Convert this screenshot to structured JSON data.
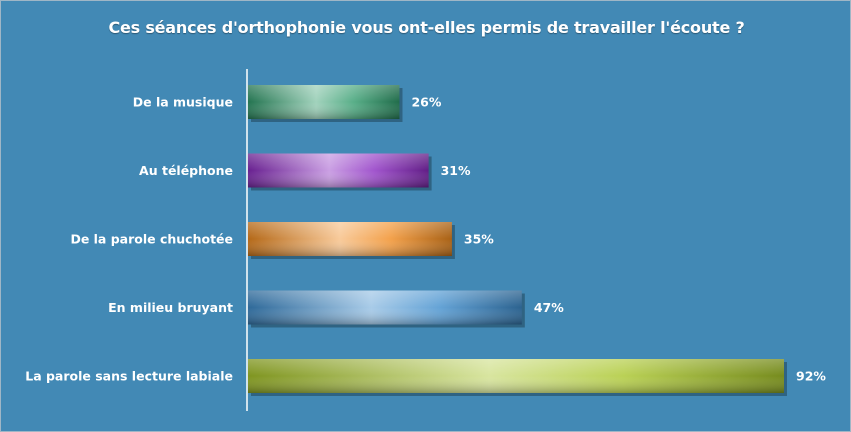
{
  "chart_data": {
    "type": "bar",
    "orientation": "horizontal",
    "title": "Ces séances d'orthophonie vous ont-elles permis de travailler l'écoute ?",
    "xlabel": "",
    "ylabel": "",
    "xlim": [
      0,
      92
    ],
    "grid": false,
    "categories": [
      "De la musique",
      "Au téléphone",
      "De la parole chuchotée",
      "En milieu bruyant",
      "La parole sans lecture labiale"
    ],
    "values": [
      26,
      31,
      35,
      47,
      92
    ],
    "value_labels": [
      "26%",
      "31%",
      "35%",
      "47%",
      "92%"
    ],
    "colors": [
      "#2e9a6a",
      "#8a2ac0",
      "#f08a1e",
      "#3d8ccc",
      "#a9c62a"
    ],
    "background": "#4289b5"
  }
}
